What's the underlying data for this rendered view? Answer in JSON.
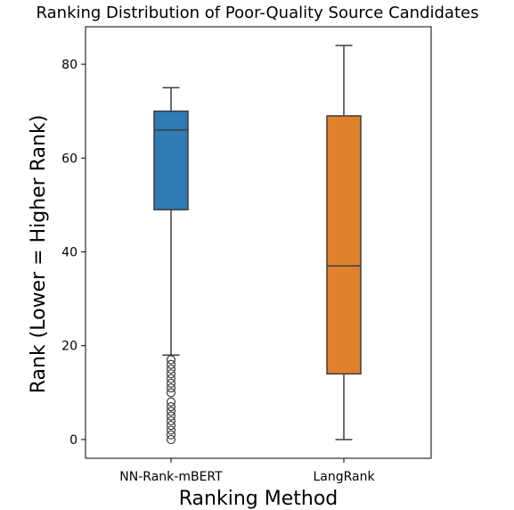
{
  "chart_data": {
    "type": "box",
    "title": "Ranking Distribution of Poor-Quality Source Candidates",
    "xlabel": "Ranking Method",
    "ylabel": "Rank (Lower = Higher Rank)",
    "ylim": [
      -4,
      88
    ],
    "yticks": [
      0,
      20,
      40,
      60,
      80
    ],
    "ytick_labels": [
      "0",
      "20",
      "40",
      "60",
      "80"
    ],
    "grid": false,
    "categories": [
      "NN-Rank-mBERT",
      "LangRank"
    ],
    "series": [
      {
        "name": "NN-Rank-mBERT",
        "color": "#2f7bb4",
        "whisker_low": 18,
        "q1": 49,
        "median": 66,
        "q3": 70,
        "whisker_high": 75,
        "outliers": [
          0,
          1,
          2,
          3,
          4,
          5,
          6,
          7,
          8,
          10,
          11,
          12,
          13,
          14,
          15,
          16,
          17
        ]
      },
      {
        "name": "LangRank",
        "color": "#e1812c",
        "whisker_low": 0,
        "q1": 14,
        "median": 37,
        "q3": 69,
        "whisker_high": 84,
        "outliers": []
      }
    ]
  }
}
